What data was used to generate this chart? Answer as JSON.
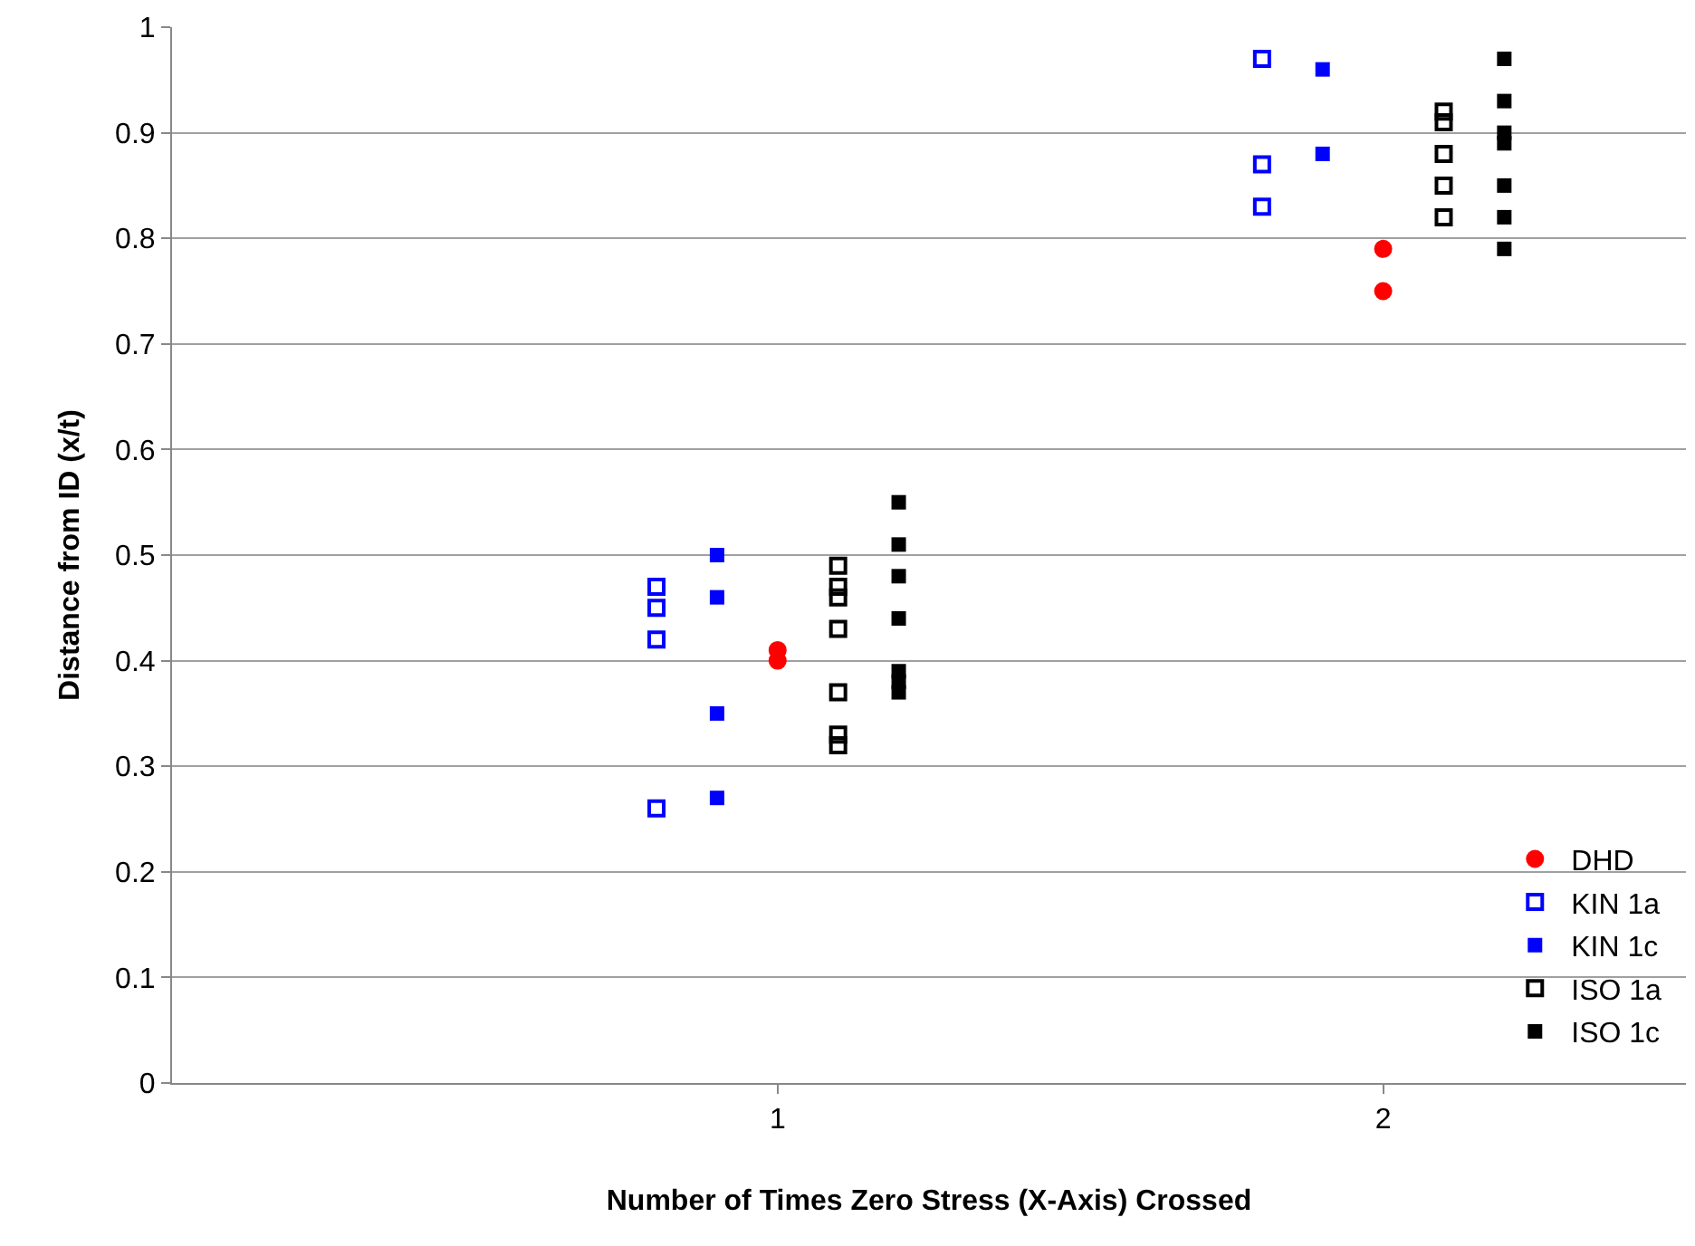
{
  "chart_data": {
    "type": "scatter",
    "xlabel": "Number of Times Zero Stress (X-Axis) Crossed",
    "ylabel": "Distance from ID (x/t)",
    "xlim": [
      0,
      2.5
    ],
    "xticks": [
      1,
      2
    ],
    "ylim": [
      0,
      1
    ],
    "yticks": [
      0,
      0.1,
      0.2,
      0.3,
      0.4,
      0.5,
      0.6,
      0.7,
      0.8,
      0.9,
      1
    ],
    "grid": "y",
    "legend": "bottom right",
    "series": [
      {
        "name": "DHD",
        "color": "#ff0000",
        "marker": "circle",
        "x": [
          1,
          1,
          2,
          2
        ],
        "values": [
          0.41,
          0.4,
          0.79,
          0.75
        ]
      },
      {
        "name": "KIN 1a",
        "color": "#0000ff",
        "marker": "square-open",
        "x": [
          0.8,
          0.8,
          0.8,
          0.8,
          1.8,
          1.8,
          1.8
        ],
        "values": [
          0.47,
          0.45,
          0.42,
          0.26,
          0.97,
          0.87,
          0.83
        ]
      },
      {
        "name": "KIN 1c",
        "color": "#0000ff",
        "marker": "square",
        "x": [
          0.9,
          0.9,
          0.9,
          0.9,
          1.9,
          1.9
        ],
        "values": [
          0.5,
          0.46,
          0.35,
          0.27,
          0.96,
          0.88
        ]
      },
      {
        "name": "ISO 1a",
        "color": "#000000",
        "marker": "square-open",
        "x": [
          1.1,
          1.1,
          1.1,
          1.1,
          1.1,
          1.1,
          1.1,
          2.1,
          2.1,
          2.1,
          2.1,
          2.1
        ],
        "values": [
          0.49,
          0.47,
          0.46,
          0.43,
          0.37,
          0.33,
          0.32,
          0.92,
          0.91,
          0.88,
          0.85,
          0.82
        ]
      },
      {
        "name": "ISO 1c",
        "color": "#000000",
        "marker": "square",
        "x": [
          1.2,
          1.2,
          1.2,
          1.2,
          1.2,
          1.2,
          1.2,
          2.2,
          2.2,
          2.2,
          2.2,
          2.2,
          2.2,
          2.2
        ],
        "values": [
          0.55,
          0.51,
          0.48,
          0.44,
          0.39,
          0.38,
          0.37,
          0.97,
          0.93,
          0.9,
          0.89,
          0.85,
          0.82,
          0.79
        ]
      }
    ]
  }
}
